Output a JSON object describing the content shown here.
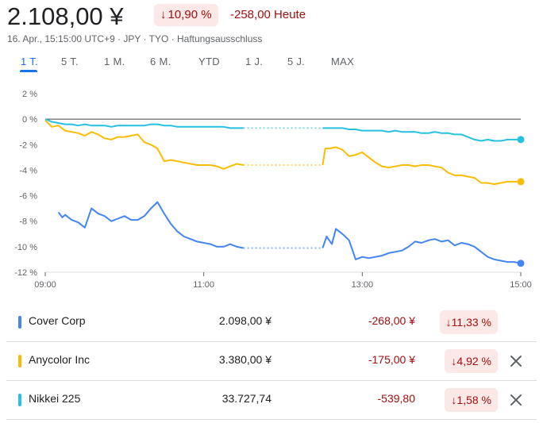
{
  "header": {
    "price": "2.108,00 ¥",
    "change_pct": "10,90 %",
    "change_abs": "-258,00 Heute",
    "meta": "16. Apr., 15:15:00 UTC+9 · JPY · TYO · Haftungsausschluss"
  },
  "tabs": [
    {
      "label": "1 T.",
      "active": true
    },
    {
      "label": "5 T."
    },
    {
      "label": "1 M."
    },
    {
      "label": "6 M."
    },
    {
      "label": "YTD"
    },
    {
      "label": "1 J."
    },
    {
      "label": "5 J."
    },
    {
      "label": "MAX"
    }
  ],
  "chart_data": {
    "type": "line",
    "x_ticks": [
      "09:00",
      "11:00",
      "13:00",
      "15:00"
    ],
    "y_ticks": [
      "2 %",
      "0 %",
      "-2 %",
      "-4 %",
      "-6 %",
      "-8 %",
      "-10 %",
      "-12 %"
    ],
    "ylim": [
      -12,
      2
    ],
    "xlim": [
      "09:00",
      "15:00"
    ],
    "baseline": 0,
    "lunch_break": [
      "11:30",
      "12:30"
    ],
    "series": [
      {
        "name": "Cover Corp",
        "color": "#4285f4",
        "points": [
          [
            "09:10",
            -7.3
          ],
          [
            "09:13",
            -7.7
          ],
          [
            "09:15",
            -7.5
          ],
          [
            "09:20",
            -7.9
          ],
          [
            "09:25",
            -8.1
          ],
          [
            "09:30",
            -8.5
          ],
          [
            "09:35",
            -7.0
          ],
          [
            "09:40",
            -7.4
          ],
          [
            "09:45",
            -7.6
          ],
          [
            "09:50",
            -8.0
          ],
          [
            "09:55",
            -7.8
          ],
          [
            "10:00",
            -7.6
          ],
          [
            "10:05",
            -7.9
          ],
          [
            "10:10",
            -7.9
          ],
          [
            "10:15",
            -7.6
          ],
          [
            "10:20",
            -7.0
          ],
          [
            "10:25",
            -6.5
          ],
          [
            "10:30",
            -7.4
          ],
          [
            "10:35",
            -8.2
          ],
          [
            "10:40",
            -8.8
          ],
          [
            "10:45",
            -9.2
          ],
          [
            "10:50",
            -9.4
          ],
          [
            "10:55",
            -9.6
          ],
          [
            "11:00",
            -9.7
          ],
          [
            "11:05",
            -9.8
          ],
          [
            "11:10",
            -10.0
          ],
          [
            "11:15",
            -10.0
          ],
          [
            "11:20",
            -9.8
          ],
          [
            "11:25",
            -10.0
          ],
          [
            "11:30",
            -10.1
          ],
          [
            "12:30",
            -10.1
          ],
          [
            "12:33",
            -9.2
          ],
          [
            "12:37",
            -9.8
          ],
          [
            "12:40",
            -8.6
          ],
          [
            "12:45",
            -9.0
          ],
          [
            "12:50",
            -9.5
          ],
          [
            "12:55",
            -11.0
          ],
          [
            "13:00",
            -10.8
          ],
          [
            "13:05",
            -10.9
          ],
          [
            "13:10",
            -10.8
          ],
          [
            "13:15",
            -10.7
          ],
          [
            "13:20",
            -10.5
          ],
          [
            "13:25",
            -10.4
          ],
          [
            "13:30",
            -10.3
          ],
          [
            "13:35",
            -10.0
          ],
          [
            "13:40",
            -9.6
          ],
          [
            "13:45",
            -9.7
          ],
          [
            "13:50",
            -9.5
          ],
          [
            "13:55",
            -9.4
          ],
          [
            "14:00",
            -9.6
          ],
          [
            "14:05",
            -9.5
          ],
          [
            "14:10",
            -9.9
          ],
          [
            "14:15",
            -9.7
          ],
          [
            "14:20",
            -9.8
          ],
          [
            "14:25",
            -10.0
          ],
          [
            "14:30",
            -10.4
          ],
          [
            "14:35",
            -10.8
          ],
          [
            "14:40",
            -11.0
          ],
          [
            "14:45",
            -11.1
          ],
          [
            "14:50",
            -11.2
          ],
          [
            "14:55",
            -11.2
          ],
          [
            "15:00",
            -11.3
          ]
        ]
      },
      {
        "name": "Anycolor Inc",
        "color": "#fbbc04",
        "points": [
          [
            "09:00",
            -0.1
          ],
          [
            "09:05",
            -0.6
          ],
          [
            "09:10",
            -0.5
          ],
          [
            "09:15",
            -0.9
          ],
          [
            "09:20",
            -1.0
          ],
          [
            "09:25",
            -1.1
          ],
          [
            "09:30",
            -1.3
          ],
          [
            "09:35",
            -1.0
          ],
          [
            "09:40",
            -1.2
          ],
          [
            "09:45",
            -1.5
          ],
          [
            "09:50",
            -1.6
          ],
          [
            "09:55",
            -1.4
          ],
          [
            "10:00",
            -1.4
          ],
          [
            "10:05",
            -1.3
          ],
          [
            "10:10",
            -1.2
          ],
          [
            "10:15",
            -1.8
          ],
          [
            "10:20",
            -2.0
          ],
          [
            "10:25",
            -2.3
          ],
          [
            "10:30",
            -3.3
          ],
          [
            "10:35",
            -3.2
          ],
          [
            "10:40",
            -3.3
          ],
          [
            "10:45",
            -3.4
          ],
          [
            "10:50",
            -3.5
          ],
          [
            "10:55",
            -3.6
          ],
          [
            "11:00",
            -3.6
          ],
          [
            "11:05",
            -3.6
          ],
          [
            "11:10",
            -3.7
          ],
          [
            "11:15",
            -3.9
          ],
          [
            "11:20",
            -3.7
          ],
          [
            "11:25",
            -3.5
          ],
          [
            "11:30",
            -3.6
          ],
          [
            "12:30",
            -3.6
          ],
          [
            "12:32",
            -2.3
          ],
          [
            "12:35",
            -2.3
          ],
          [
            "12:40",
            -2.2
          ],
          [
            "12:45",
            -2.4
          ],
          [
            "12:50",
            -2.9
          ],
          [
            "12:55",
            -2.8
          ],
          [
            "13:00",
            -2.6
          ],
          [
            "13:05",
            -3.0
          ],
          [
            "13:10",
            -3.4
          ],
          [
            "13:15",
            -3.7
          ],
          [
            "13:20",
            -3.8
          ],
          [
            "13:25",
            -3.7
          ],
          [
            "13:30",
            -3.6
          ],
          [
            "13:35",
            -3.6
          ],
          [
            "13:40",
            -3.7
          ],
          [
            "13:45",
            -3.6
          ],
          [
            "13:50",
            -3.6
          ],
          [
            "13:55",
            -3.7
          ],
          [
            "14:00",
            -3.8
          ],
          [
            "14:05",
            -4.2
          ],
          [
            "14:10",
            -4.4
          ],
          [
            "14:15",
            -4.4
          ],
          [
            "14:20",
            -4.5
          ],
          [
            "14:25",
            -4.6
          ],
          [
            "14:30",
            -5.0
          ],
          [
            "14:35",
            -5.0
          ],
          [
            "14:40",
            -5.1
          ],
          [
            "14:45",
            -5.0
          ],
          [
            "14:50",
            -4.9
          ],
          [
            "14:55",
            -4.9
          ],
          [
            "15:00",
            -4.9
          ]
        ]
      },
      {
        "name": "Nikkei 225",
        "color": "#24c1e0",
        "points": [
          [
            "09:00",
            0.0
          ],
          [
            "09:05",
            -0.2
          ],
          [
            "09:10",
            -0.3
          ],
          [
            "09:15",
            -0.4
          ],
          [
            "09:20",
            -0.4
          ],
          [
            "09:25",
            -0.5
          ],
          [
            "09:30",
            -0.4
          ],
          [
            "09:35",
            -0.5
          ],
          [
            "09:40",
            -0.5
          ],
          [
            "09:45",
            -0.5
          ],
          [
            "09:50",
            -0.6
          ],
          [
            "09:55",
            -0.5
          ],
          [
            "10:00",
            -0.5
          ],
          [
            "10:05",
            -0.5
          ],
          [
            "10:10",
            -0.5
          ],
          [
            "10:15",
            -0.5
          ],
          [
            "10:20",
            -0.4
          ],
          [
            "10:25",
            -0.4
          ],
          [
            "10:30",
            -0.5
          ],
          [
            "10:35",
            -0.5
          ],
          [
            "10:40",
            -0.6
          ],
          [
            "10:45",
            -0.6
          ],
          [
            "10:50",
            -0.6
          ],
          [
            "10:55",
            -0.6
          ],
          [
            "11:00",
            -0.6
          ],
          [
            "11:05",
            -0.6
          ],
          [
            "11:10",
            -0.6
          ],
          [
            "11:15",
            -0.6
          ],
          [
            "11:20",
            -0.7
          ],
          [
            "11:25",
            -0.7
          ],
          [
            "11:30",
            -0.7
          ],
          [
            "12:30",
            -0.7
          ],
          [
            "12:35",
            -0.7
          ],
          [
            "12:40",
            -0.7
          ],
          [
            "12:45",
            -0.7
          ],
          [
            "12:50",
            -0.8
          ],
          [
            "12:55",
            -0.8
          ],
          [
            "13:00",
            -0.9
          ],
          [
            "13:05",
            -0.9
          ],
          [
            "13:10",
            -0.9
          ],
          [
            "13:15",
            -0.9
          ],
          [
            "13:20",
            -1.0
          ],
          [
            "13:25",
            -0.9
          ],
          [
            "13:30",
            -1.0
          ],
          [
            "13:35",
            -1.0
          ],
          [
            "13:40",
            -1.0
          ],
          [
            "13:45",
            -1.1
          ],
          [
            "13:50",
            -1.1
          ],
          [
            "13:55",
            -1.0
          ],
          [
            "14:00",
            -1.1
          ],
          [
            "14:05",
            -1.1
          ],
          [
            "14:10",
            -1.2
          ],
          [
            "14:15",
            -1.2
          ],
          [
            "14:20",
            -1.4
          ],
          [
            "14:25",
            -1.6
          ],
          [
            "14:30",
            -1.7
          ],
          [
            "14:35",
            -1.6
          ],
          [
            "14:40",
            -1.7
          ],
          [
            "14:45",
            -1.7
          ],
          [
            "14:50",
            -1.6
          ],
          [
            "14:55",
            -1.6
          ],
          [
            "15:00",
            -1.6
          ]
        ]
      }
    ]
  },
  "comparisons": [
    {
      "name": "Cover Corp",
      "color": "#4285f4",
      "value": "2.098,00 ¥",
      "change": "-268,00 ¥",
      "pct": "11,33 %",
      "removable": false
    },
    {
      "name": "Anycolor Inc",
      "color": "#fbbc04",
      "value": "3.380,00 ¥",
      "change": "-175,00 ¥",
      "pct": "4,92 %",
      "removable": true
    },
    {
      "name": "Nikkei 225",
      "color": "#24c1e0",
      "value": "33.727,74",
      "change": "-539,80",
      "pct": "1,58 %",
      "removable": true
    }
  ],
  "icons": {
    "down_arrow": "arrow-down-icon",
    "close": "close-icon"
  }
}
